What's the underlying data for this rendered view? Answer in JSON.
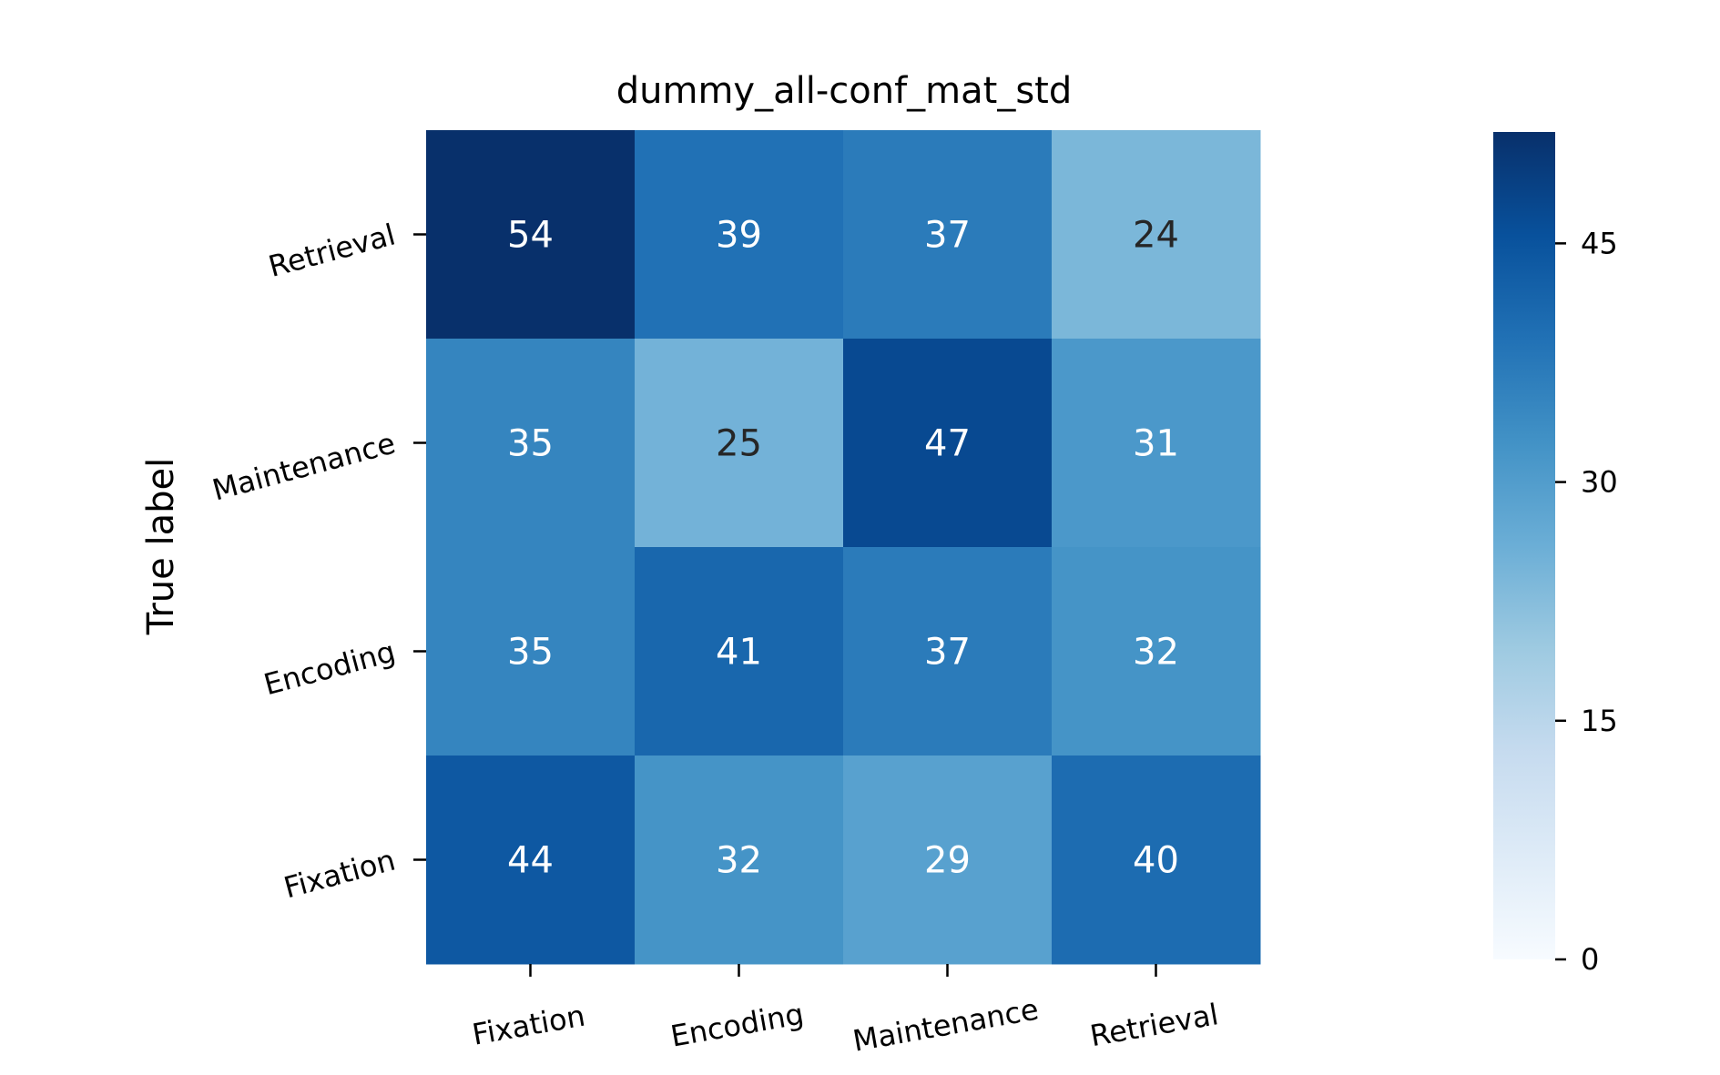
{
  "chart_data": {
    "type": "heatmap",
    "title": "dummy_all-conf_mat_std",
    "xlabel": "",
    "ylabel": "True label",
    "x_categories": [
      "Fixation",
      "Encoding",
      "Maintenance",
      "Retrieval"
    ],
    "y_categories": [
      "Retrieval",
      "Maintenance",
      "Encoding",
      "Fixation"
    ],
    "values": [
      [
        54,
        39,
        37,
        24
      ],
      [
        35,
        25,
        47,
        31
      ],
      [
        35,
        41,
        37,
        32
      ],
      [
        44,
        32,
        29,
        40
      ]
    ],
    "colormap": "Blues",
    "colorbar": {
      "min": 0,
      "max": 52,
      "ticks": [
        0,
        15,
        30,
        45
      ]
    },
    "grid": false,
    "text_colors": {
      "dark": "#262626",
      "light": "#ffffff"
    }
  }
}
